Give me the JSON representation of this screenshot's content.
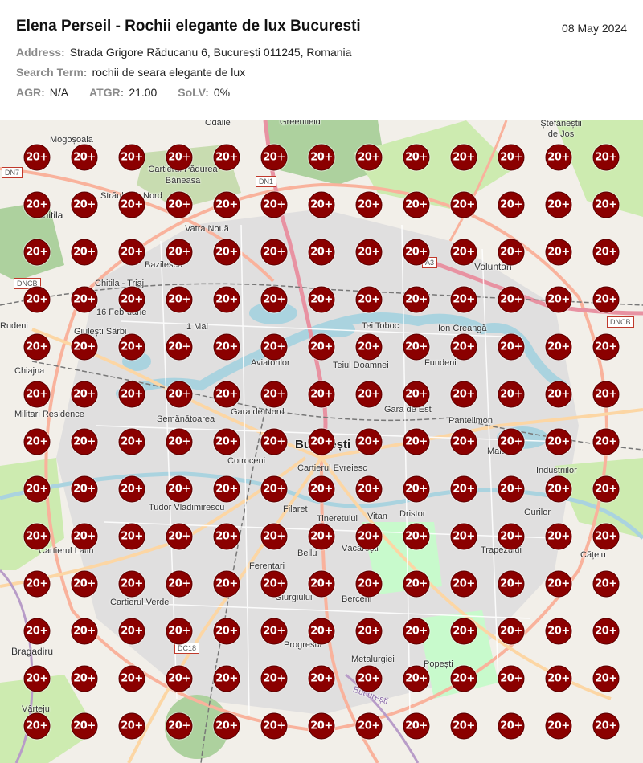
{
  "header": {
    "title": "Elena Perseil - Rochii elegante de lux Bucuresti",
    "date": "08 May 2024",
    "address_label": "Address:",
    "address": "Strada Grigore Răducanu 6, București 011245, Romania",
    "search_label": "Search Term:",
    "search_term": "rochii de seara elegante de lux",
    "agr_label": "AGR:",
    "agr": "N/A",
    "atgr_label": "ATGR:",
    "atgr": "21.00",
    "solv_label": "SoLV:",
    "solv": "0%"
  },
  "map": {
    "pin_label": "20+",
    "pin_color": "#8b0000",
    "grid_rows": 13,
    "grid_cols": 13,
    "labels": {
      "odaile": "Odăile",
      "greenfield": "Greenfield",
      "stefanesti": "Ștefăneștii de Jos",
      "mogosoaia": "Mogoșoaia",
      "padurea_baneasa": "Cartierul Pădurea Băneasa",
      "straulesti": "Străulești",
      "nord": "Nord",
      "chitila": "Chitila",
      "vatra_noua": "Vatra Nouă",
      "voluntari": "Voluntari",
      "bazilescu": "Bazilescu",
      "chitila_triaj": "Chitila - Triaj",
      "februarie": "16 Februarie",
      "rudeni": "Rudeni",
      "giulesti_sarbi": "Giulești Sârbi",
      "mai": "1 Mai",
      "tei_toboc": "Tei Toboc",
      "ion_creanga": "Ion Creangă",
      "chiajna": "Chiajna",
      "aviatorilor": "Aviatorilor",
      "teiul_doamnei": "Teiul Doamnei",
      "fundeni": "Fundeni",
      "militari": "Militari Residence",
      "gara_nord": "Gara de Nord",
      "gara_est": "Gara de Est",
      "pantelimon": "Pantelimon",
      "semanatoarea": "Semănătoarea",
      "bucuresti": "București",
      "cotroceni": "Cotroceni",
      "evreiesc": "Cartierul Evreiesc",
      "malaxa": "Malaxa",
      "industriilor": "Industriilor",
      "tudor": "Tudor Vladimirescu",
      "filaret": "Filaret",
      "vitan": "Vitan",
      "dristor": "Dristor",
      "gurilor": "Gurilor",
      "tineretului": "Tineretului",
      "vacaresti": "Văcărești",
      "latin": "Cartierul Latin",
      "bellu": "Bellu",
      "trapezului": "Trapezului",
      "catelu": "Cățelu",
      "ferentari": "Ferentari",
      "verde": "Cartierul Verde",
      "giurgiului": "Giurgiului",
      "berceni": "Berceni",
      "bragadiru": "Bragadiru",
      "progresul": "Progresul",
      "metalurgiei": "Metalurgiei",
      "popesti": "Popești",
      "varteju": "Vârteju",
      "bucuresti_road": "București"
    },
    "shields": {
      "dn7": "DN7",
      "dn1": "DN1",
      "dncb": "DNCB",
      "dncb2": "DNCB",
      "a3": "A3",
      "dc18": "DC18"
    },
    "colors": {
      "land": "#f2efe9",
      "forest": "#add19e",
      "park": "#c8facc",
      "water": "#aad3df",
      "urban": "#e0dfdf",
      "motorway": "#e892a2",
      "trunk": "#f9b29c",
      "primary": "#fcd6a4",
      "railway": "#777777"
    }
  }
}
